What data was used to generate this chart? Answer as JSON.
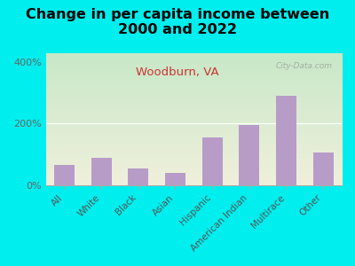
{
  "title": "Change in per capita income between\n2000 and 2022",
  "subtitle": "Woodburn, VA",
  "categories": [
    "All",
    "White",
    "Black",
    "Asian",
    "Hispanic",
    "American Indian",
    "Multirace",
    "Other"
  ],
  "values": [
    65,
    90,
    55,
    40,
    155,
    195,
    290,
    105
  ],
  "bar_color": "#b89cc8",
  "title_fontsize": 11.5,
  "subtitle_fontsize": 9.5,
  "subtitle_color": "#cc3333",
  "background_outer": "#00eeee",
  "plot_bg_top": "#c8e8c8",
  "plot_bg_bottom": "#f0f0dc",
  "ylabel_ticks": [
    "0%",
    "200%",
    "400%"
  ],
  "yticks": [
    0,
    200,
    400
  ],
  "ylim": [
    0,
    430
  ],
  "watermark": "City-Data.com"
}
